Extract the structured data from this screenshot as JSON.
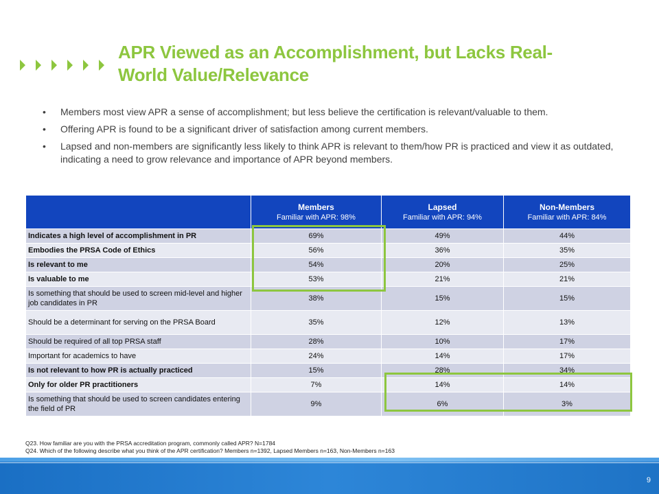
{
  "slide": {
    "title": "APR Viewed as an Accomplishment, but Lacks Real-World Value/Relevance",
    "bullets": [
      "Members most view APR a sense of accomplishment; but less believe the certification is relevant/valuable to them.",
      "Offering APR is found to be a significant driver of satisfaction among current members.",
      "Lapsed and non-members are significantly less likely to think APR is relevant to them/how PR is practiced and view it as outdated, indicating a need to grow relevance and importance of APR beyond members."
    ],
    "bullet_char": "•",
    "page_number": "9",
    "colors": {
      "title": "#8dc63f",
      "header": "#1245be",
      "row_dark": "#cfd2e3",
      "row_light": "#e8eaf2",
      "highlight": "#8dc63f"
    }
  },
  "table": {
    "columns": [
      {
        "label": "Members",
        "sub": "Familiar with APR: 98%"
      },
      {
        "label": "Lapsed",
        "sub": "Familiar with APR: 94%"
      },
      {
        "label": "Non-Members",
        "sub": "Familiar with APR: 84%"
      }
    ],
    "rows": [
      {
        "label": "Indicates a high level of accomplishment in PR",
        "values": [
          "69%",
          "49%",
          "44%"
        ]
      },
      {
        "label": "Embodies the PRSA Code of Ethics",
        "values": [
          "56%",
          "36%",
          "35%"
        ]
      },
      {
        "label": "Is relevant to me",
        "values": [
          "54%",
          "20%",
          "25%"
        ]
      },
      {
        "label": "Is valuable to me",
        "values": [
          "53%",
          "21%",
          "21%"
        ]
      },
      {
        "label": "Is something that should be used to screen mid-level and higher job candidates in PR",
        "values": [
          "38%",
          "15%",
          "15%"
        ]
      },
      {
        "label": "Should be a determinant for serving on the PRSA Board",
        "values": [
          "35%",
          "12%",
          "13%"
        ]
      },
      {
        "label": "Should be required of all top PRSA staff",
        "values": [
          "28%",
          "10%",
          "17%"
        ]
      },
      {
        "label": "Important for academics to have",
        "values": [
          "24%",
          "14%",
          "17%"
        ]
      },
      {
        "label": "Is not relevant to how PR is actually practiced",
        "values": [
          "15%",
          "28%",
          "34%"
        ]
      },
      {
        "label": "Only for older PR practitioners",
        "values": [
          "7%",
          "14%",
          "14%"
        ]
      },
      {
        "label": "Is something that should be used to screen candidates entering the field of PR",
        "values": [
          "9%",
          "6%",
          "3%"
        ]
      }
    ]
  },
  "footnotes": [
    "Q23. How familiar are you with the PRSA accreditation program, commonly called APR? N=1784",
    "Q24. Which of the following describe what you think of the APR certification? Members n=1392, Lapsed Members n=163, Non-Members n=163"
  ]
}
